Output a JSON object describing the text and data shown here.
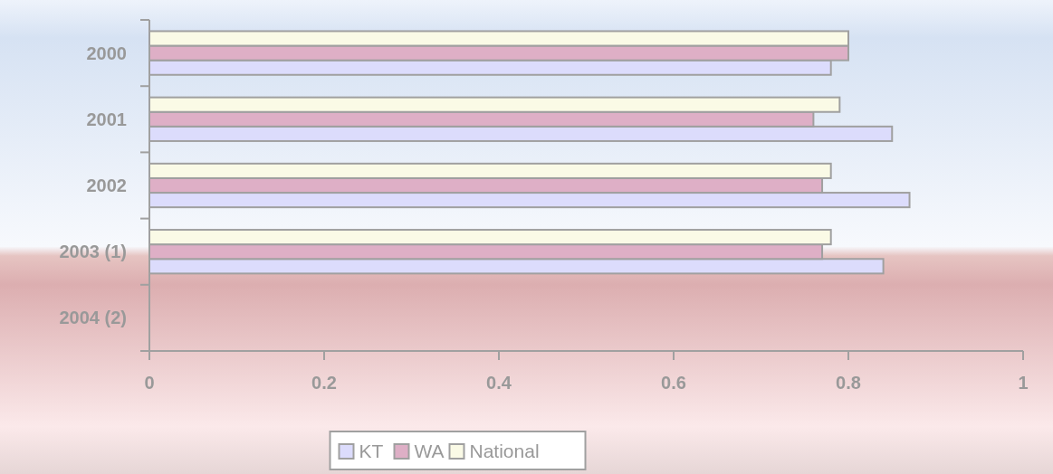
{
  "chart_data": {
    "type": "bar",
    "orientation": "horizontal",
    "categories": [
      "2000",
      "2001",
      "2002",
      "2003 (1)",
      "2004 (2)"
    ],
    "series": [
      {
        "name": "KT",
        "color": "#dcdcfc",
        "values": [
          0.78,
          0.85,
          0.87,
          0.84,
          null
        ]
      },
      {
        "name": "WA",
        "color": "#deafc6",
        "values": [
          0.8,
          0.76,
          0.77,
          0.77,
          null
        ]
      },
      {
        "name": "National",
        "color": "#fafae6",
        "values": [
          0.8,
          0.79,
          0.78,
          0.78,
          null
        ]
      }
    ],
    "xlim": [
      0,
      1
    ],
    "xticks": [
      0,
      {
        "value": 0.2,
        "label": "0.2"
      },
      {
        "value": 0.4,
        "label": "0.4"
      },
      {
        "value": 0.6,
        "label": "0.6"
      },
      {
        "value": 0.8,
        "label": "0.8"
      },
      1
    ],
    "grid": false,
    "legend": "bottom"
  }
}
